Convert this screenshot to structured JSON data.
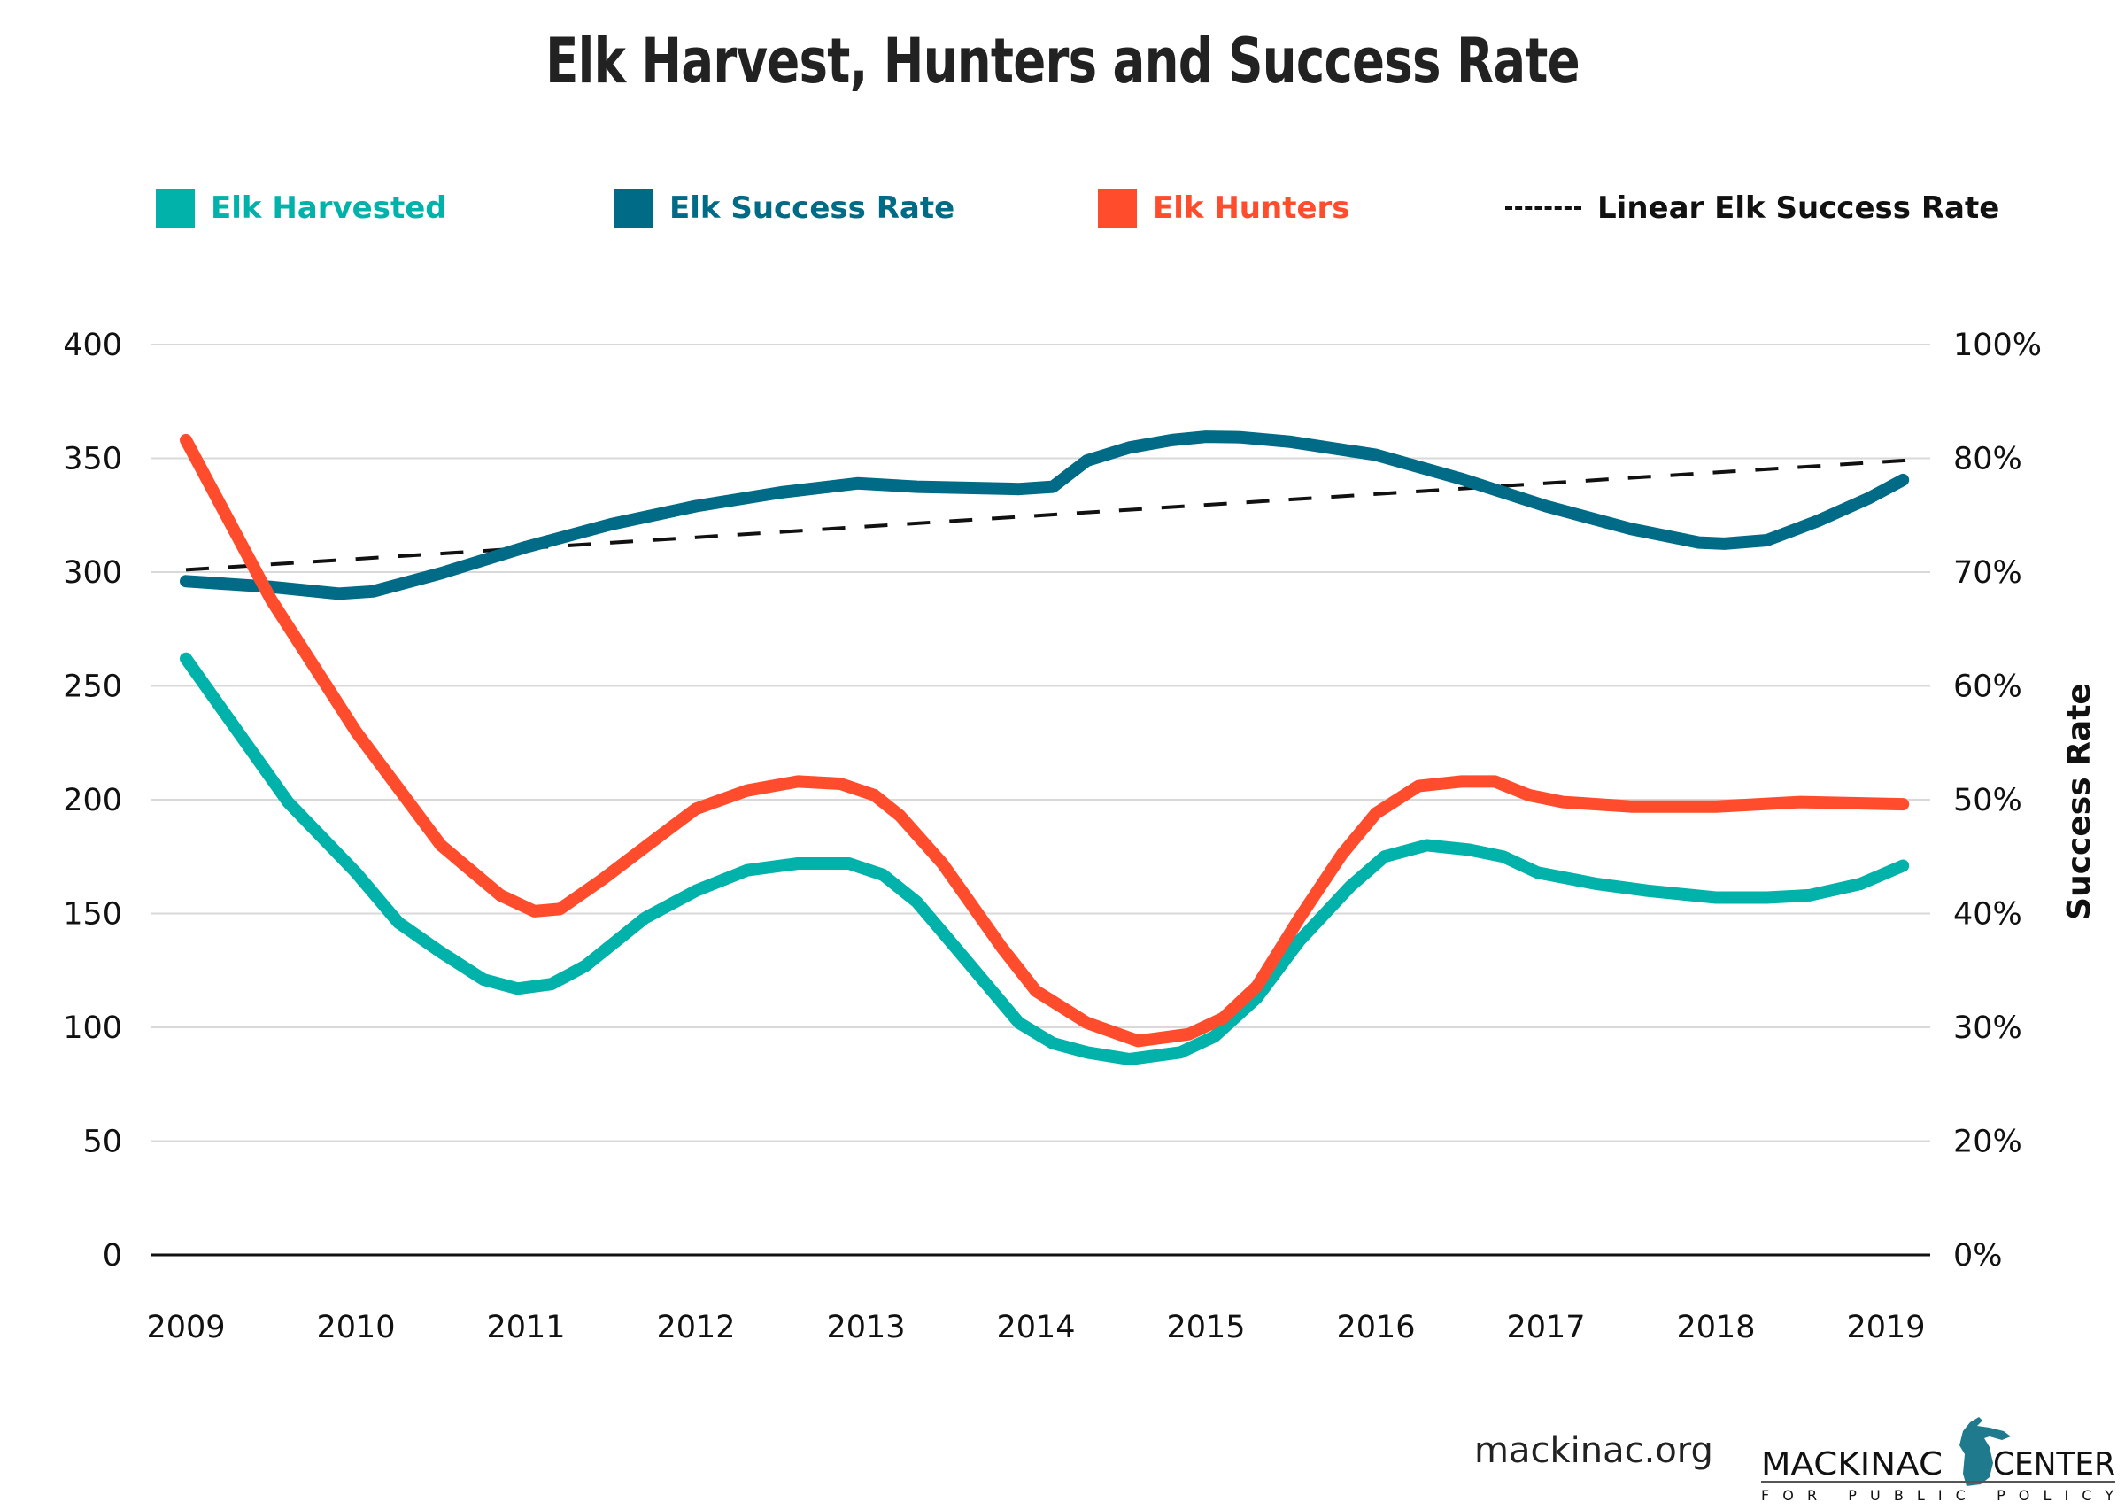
{
  "chart_data": {
    "type": "line",
    "title": "Elk Harvest, Hunters and Success Rate",
    "xlabel": "",
    "ylabel_left": "",
    "ylabel_right": "Success Rate",
    "x_ticks": [
      "2009",
      "2010",
      "2011",
      "2012",
      "2013",
      "2014",
      "2015",
      "2016",
      "2017",
      "2018",
      "2019"
    ],
    "xlim": [
      2009,
      2019
    ],
    "ylim_left": [
      0,
      400
    ],
    "y_ticks_left": [
      "0",
      "50",
      "100",
      "150",
      "200",
      "250",
      "300",
      "350",
      "400"
    ],
    "y_ticks_right": [
      "0%",
      "20%",
      "30%",
      "40%",
      "50%",
      "60%",
      "70%",
      "80%",
      "100%"
    ],
    "grid": true,
    "legend_position": "top",
    "legend": [
      {
        "name": "Elk Harvested",
        "color": "#00B2A9",
        "style": "solid"
      },
      {
        "name": "Elk Success Rate",
        "color": "#006B86",
        "style": "solid"
      },
      {
        "name": "Elk Hunters",
        "color": "#FF4C2C",
        "style": "solid"
      },
      {
        "name": "Linear Elk Success Rate",
        "color": "#111111",
        "style": "dashed"
      }
    ],
    "series": [
      {
        "name": "Elk Harvested",
        "axis": "left",
        "color": "#00B2A9",
        "x": [
          2009,
          2009.6,
          2010,
          2010.25,
          2010.5,
          2010.75,
          2010.95,
          2011.15,
          2011.35,
          2011.7,
          2012,
          2012.3,
          2012.6,
          2012.9,
          2013.1,
          2013.3,
          2013.55,
          2013.9,
          2014.1,
          2014.3,
          2014.55,
          2014.85,
          2015.05,
          2015.3,
          2015.55,
          2015.85,
          2016.05,
          2016.3,
          2016.55,
          2016.75,
          2016.95,
          2017.3,
          2017.6,
          2018,
          2018.3,
          2018.55,
          2018.85,
          2019.1
        ],
        "values": [
          262,
          199,
          168,
          146,
          133,
          121,
          117,
          119,
          127,
          148,
          160,
          169,
          172,
          172,
          167,
          155,
          133,
          102,
          93,
          89,
          86,
          89,
          96,
          113,
          138,
          162,
          175,
          180,
          178,
          175,
          168,
          163,
          160,
          157,
          157,
          158,
          163,
          171
        ]
      },
      {
        "name": "Elk Hunters",
        "axis": "left",
        "color": "#FF4C2C",
        "x": [
          2009,
          2009.5,
          2010,
          2010.5,
          2010.85,
          2011.05,
          2011.2,
          2011.45,
          2011.75,
          2012,
          2012.3,
          2012.6,
          2012.85,
          2013.05,
          2013.2,
          2013.45,
          2013.8,
          2014,
          2014.3,
          2014.6,
          2014.9,
          2015.1,
          2015.3,
          2015.55,
          2015.8,
          2016,
          2016.25,
          2016.5,
          2016.7,
          2016.9,
          2017.1,
          2017.5,
          2018,
          2018.5,
          2019.1
        ],
        "values": [
          358,
          288,
          230,
          180,
          158,
          151,
          152,
          165,
          182,
          196,
          204,
          208,
          207,
          202,
          193,
          172,
          135,
          116,
          102,
          94,
          97,
          104,
          118,
          148,
          176,
          194,
          206,
          208,
          208,
          202,
          199,
          197,
          197,
          199,
          198
        ]
      },
      {
        "name": "Elk Success Rate",
        "axis": "right",
        "unit": "%",
        "color": "#006B86",
        "x": [
          2009,
          2009.5,
          2009.9,
          2010.1,
          2010.5,
          2011,
          2011.5,
          2012,
          2012.5,
          2012.95,
          2013.3,
          2013.9,
          2014.1,
          2014.3,
          2014.55,
          2014.8,
          2015.0,
          2015.2,
          2015.5,
          2016,
          2016.5,
          2017,
          2017.5,
          2017.9,
          2018.05,
          2018.3,
          2018.6,
          2018.9,
          2019.1
        ],
        "values": [
          69.2,
          68.7,
          68.1,
          68.3,
          69.9,
          72.2,
          74.2,
          75.8,
          77.0,
          77.8,
          77.5,
          77.3,
          77.5,
          79.8,
          81.9,
          83.2,
          83.8,
          83.7,
          82.9,
          80.6,
          78.2,
          75.8,
          73.8,
          72.6,
          72.5,
          72.8,
          74.5,
          76.5,
          78.1
        ]
      },
      {
        "name": "Linear Elk Success Rate",
        "axis": "right",
        "unit": "%",
        "color": "#111111",
        "style": "dashed",
        "x": [
          2009,
          2019.2
        ],
        "values": [
          70.2,
          79.9
        ]
      }
    ]
  },
  "footer": {
    "url": "mackinac.org",
    "logo_main_left": "MACKINAC",
    "logo_main_right": "CENTER",
    "logo_sub": "FOR PUBLIC POLICY"
  }
}
